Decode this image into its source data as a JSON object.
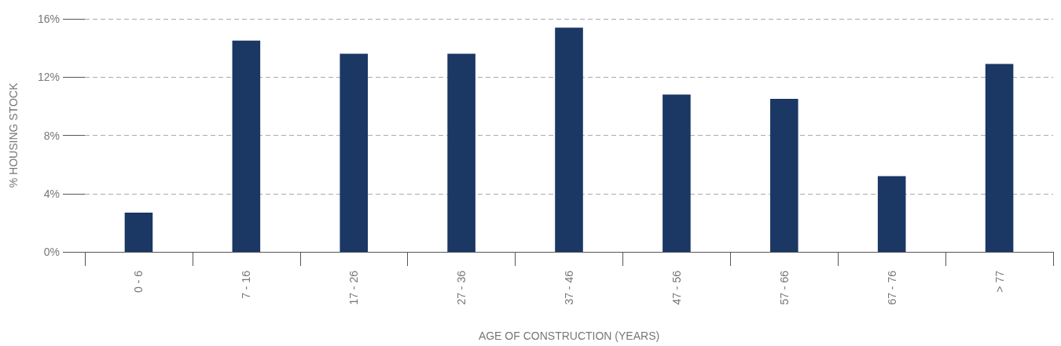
{
  "chart_data": {
    "type": "bar",
    "xlabel": "AGE OF CONSTRUCTION (YEARS)",
    "ylabel": "% HOUSING STOCK",
    "categories": [
      "0 - 6",
      "7 - 16",
      "17 - 26",
      "27 - 36",
      "37 - 46",
      "47 - 56",
      "57 - 66",
      "67 - 76",
      "> 77"
    ],
    "values": [
      2.7,
      14.5,
      13.6,
      13.6,
      15.4,
      10.8,
      10.5,
      5.2,
      12.9
    ],
    "color": "#1b3764",
    "ylim": [
      0,
      16
    ],
    "yticks": [
      {
        "value": 0,
        "label": "0%"
      },
      {
        "value": 4,
        "label": "4%"
      },
      {
        "value": 8,
        "label": "8%"
      },
      {
        "value": 12,
        "label": "12%"
      },
      {
        "value": 16,
        "label": "16%"
      }
    ],
    "grid": "y"
  }
}
